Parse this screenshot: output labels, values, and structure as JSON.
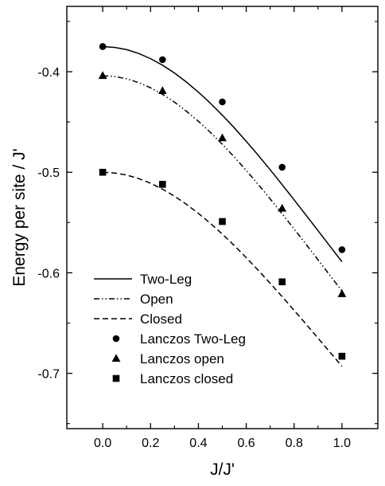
{
  "chart_data": {
    "type": "scatter",
    "xlabel": "J/J'",
    "ylabel": "Energy per site / J'",
    "xlim": [
      -0.15,
      1.15
    ],
    "ylim": [
      -0.755,
      -0.335
    ],
    "xticks": [
      "0.0",
      "0.2",
      "0.4",
      "0.6",
      "0.8",
      "1.0"
    ],
    "yticks": [
      "-0.4",
      "-0.5",
      "-0.6",
      "-0.7"
    ],
    "grid": false,
    "legend_position": "bottom-left",
    "lines": [
      {
        "name": "Two-Leg",
        "style": "solid",
        "x": [
          0,
          0.05,
          0.1,
          0.15,
          0.2,
          0.25,
          0.3,
          0.35,
          0.4,
          0.45,
          0.5,
          0.55,
          0.6,
          0.65,
          0.7,
          0.75,
          0.8,
          0.85,
          0.9,
          0.95,
          1.0
        ],
        "y": [
          -0.375,
          -0.3758,
          -0.378,
          -0.3818,
          -0.387,
          -0.3935,
          -0.4013,
          -0.4103,
          -0.4203,
          -0.4313,
          -0.4432,
          -0.4558,
          -0.4692,
          -0.4831,
          -0.4975,
          -0.5123,
          -0.5274,
          -0.5427,
          -0.5581,
          -0.5736,
          -0.589
        ]
      },
      {
        "name": "Open",
        "style": "dashdotdot",
        "x": [
          0,
          0.05,
          0.1,
          0.15,
          0.2,
          0.25,
          0.3,
          0.35,
          0.4,
          0.45,
          0.5,
          0.55,
          0.6,
          0.65,
          0.7,
          0.75,
          0.8,
          0.85,
          0.9,
          0.95,
          1.0
        ],
        "y": [
          -0.404,
          -0.4048,
          -0.407,
          -0.4108,
          -0.416,
          -0.4225,
          -0.4303,
          -0.4393,
          -0.4493,
          -0.4603,
          -0.4722,
          -0.4848,
          -0.4982,
          -0.5121,
          -0.5265,
          -0.5413,
          -0.5564,
          -0.5717,
          -0.5871,
          -0.6026,
          -0.618
        ]
      },
      {
        "name": "Closed",
        "style": "dashed",
        "x": [
          0,
          0.05,
          0.1,
          0.15,
          0.2,
          0.25,
          0.3,
          0.35,
          0.4,
          0.45,
          0.5,
          0.55,
          0.6,
          0.65,
          0.7,
          0.75,
          0.8,
          0.85,
          0.9,
          0.95,
          1.0
        ],
        "y": [
          -0.5,
          -0.5007,
          -0.5028,
          -0.5062,
          -0.5109,
          -0.5168,
          -0.5238,
          -0.5319,
          -0.5409,
          -0.5508,
          -0.5615,
          -0.5729,
          -0.5849,
          -0.5975,
          -0.6104,
          -0.6237,
          -0.6373,
          -0.6511,
          -0.665,
          -0.679,
          -0.693
        ]
      }
    ],
    "series": [
      {
        "name": "Lanczos Two-Leg",
        "marker": "circle",
        "x": [
          0,
          0.25,
          0.5,
          0.75,
          1.0
        ],
        "y": [
          -0.375,
          -0.388,
          -0.43,
          -0.495,
          -0.577
        ]
      },
      {
        "name": "Lanczos open",
        "marker": "triangle",
        "x": [
          0,
          0.25,
          0.5,
          0.75,
          1.0
        ],
        "y": [
          -0.404,
          -0.419,
          -0.466,
          -0.536,
          -0.621
        ]
      },
      {
        "name": "Lanczos closed",
        "marker": "square",
        "x": [
          0,
          0.25,
          0.5,
          0.75,
          1.0
        ],
        "y": [
          -0.5,
          -0.512,
          -0.549,
          -0.609,
          -0.683
        ]
      }
    ]
  }
}
